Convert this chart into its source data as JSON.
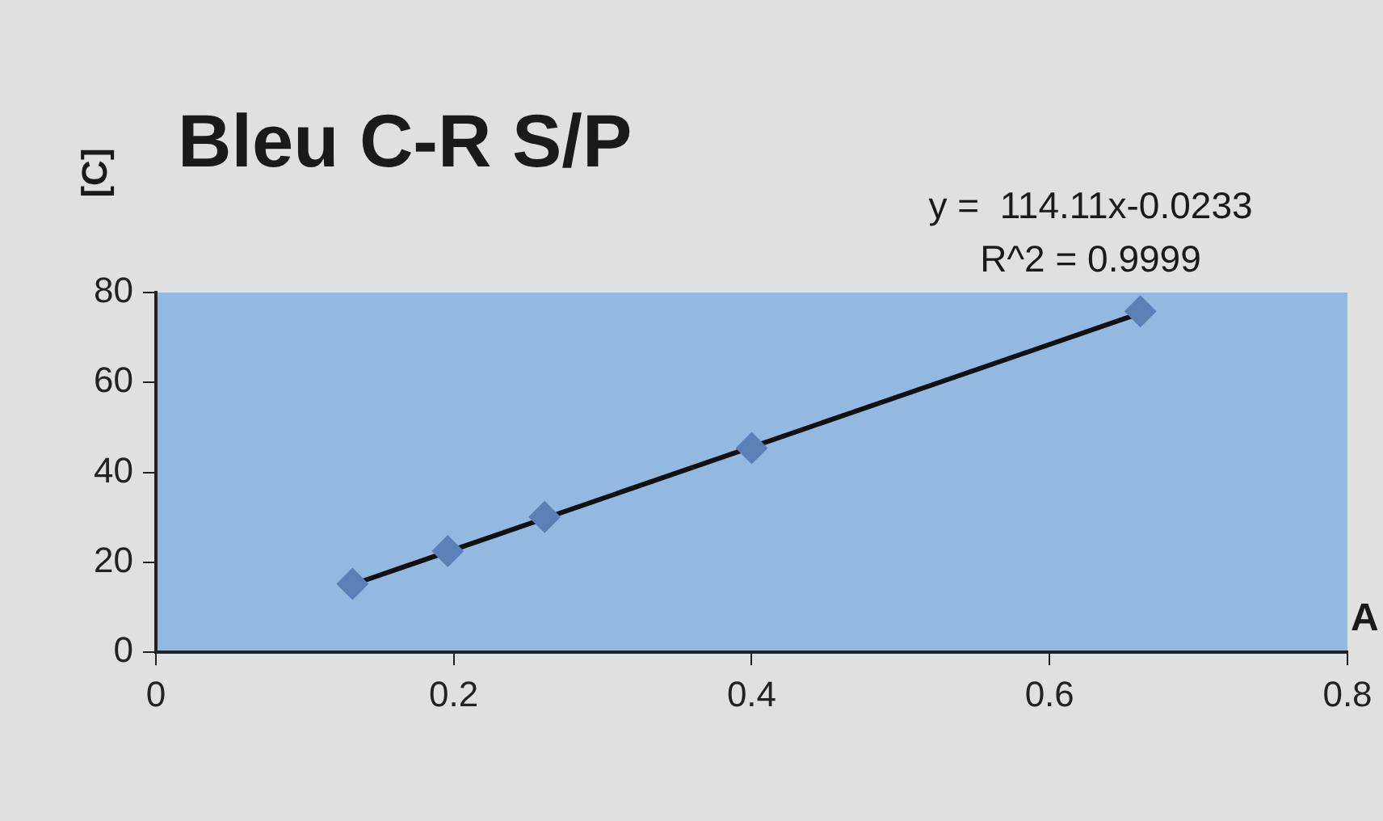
{
  "chart_data": {
    "type": "scatter",
    "title": "Bleu C-R S/P",
    "xlabel": "A",
    "ylabel": "[C]",
    "annotations": [
      "y =  114.11x-0.0233",
      "R^2 = 0.9999"
    ],
    "x": [
      0.132,
      0.196,
      0.261,
      0.4,
      0.661
    ],
    "series": [
      {
        "type": "scatter",
        "color": "#5b80b5",
        "marker": "diamond",
        "values": [
          15.2,
          22.5,
          30.1,
          45.4,
          75.8
        ]
      },
      {
        "type": "line",
        "color": "#111111",
        "marker": "none",
        "line_style": "solid",
        "x": [
          0.135,
          0.66
        ],
        "values": [
          15.4,
          75.3
        ]
      }
    ],
    "xlim": [
      0,
      0.8
    ],
    "xticks": [
      0,
      0.2,
      0.4,
      0.6,
      0.8
    ],
    "ylim": [
      0,
      80
    ],
    "yticks": [
      0,
      20,
      40,
      60,
      80
    ],
    "grid": false,
    "legend": false
  }
}
